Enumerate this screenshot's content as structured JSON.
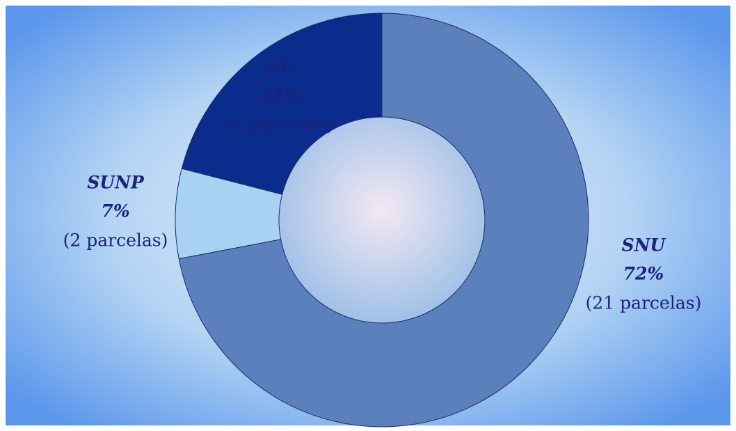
{
  "chart_data": {
    "type": "pie",
    "donut": true,
    "categories": [
      "SNU",
      "SUNP",
      "SU"
    ],
    "values": [
      72,
      7,
      21
    ],
    "value_labels": [
      "72%",
      "7%",
      "21%"
    ],
    "details": [
      "(21 parcelas)",
      "(2 parcelas)",
      "(6 parcelas)"
    ],
    "colors": [
      "#5b80bb",
      "#a9d2f2",
      "#0b2c8c"
    ]
  }
}
